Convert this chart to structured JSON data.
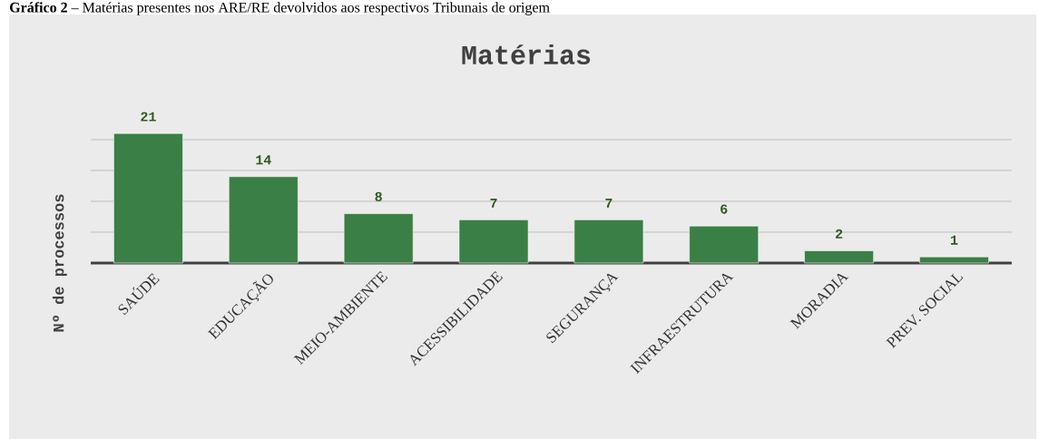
{
  "chart_data": {
    "type": "bar",
    "title": "Matérias",
    "ylabel": "Nº de processos",
    "annotations": [
      "**Gráfico 2** – Matérias presentes nos ARE/RE devolvidos aos respectivos Tribunais de origem"
    ],
    "categories": [
      "SAÚDE",
      "EDUCAÇÃO",
      "MEIO-AMBIENTE",
      "ACESSIBILIDADE",
      "SEGURANÇA",
      "INFRAESTRUTURA",
      "MORADIA",
      "PREV. SOCIAL"
    ],
    "values": [
      21,
      14,
      8,
      7,
      7,
      6,
      2,
      1
    ],
    "color": "#3a7f45",
    "grid": "y",
    "tick_labels": "x",
    "data_labels": true
  }
}
